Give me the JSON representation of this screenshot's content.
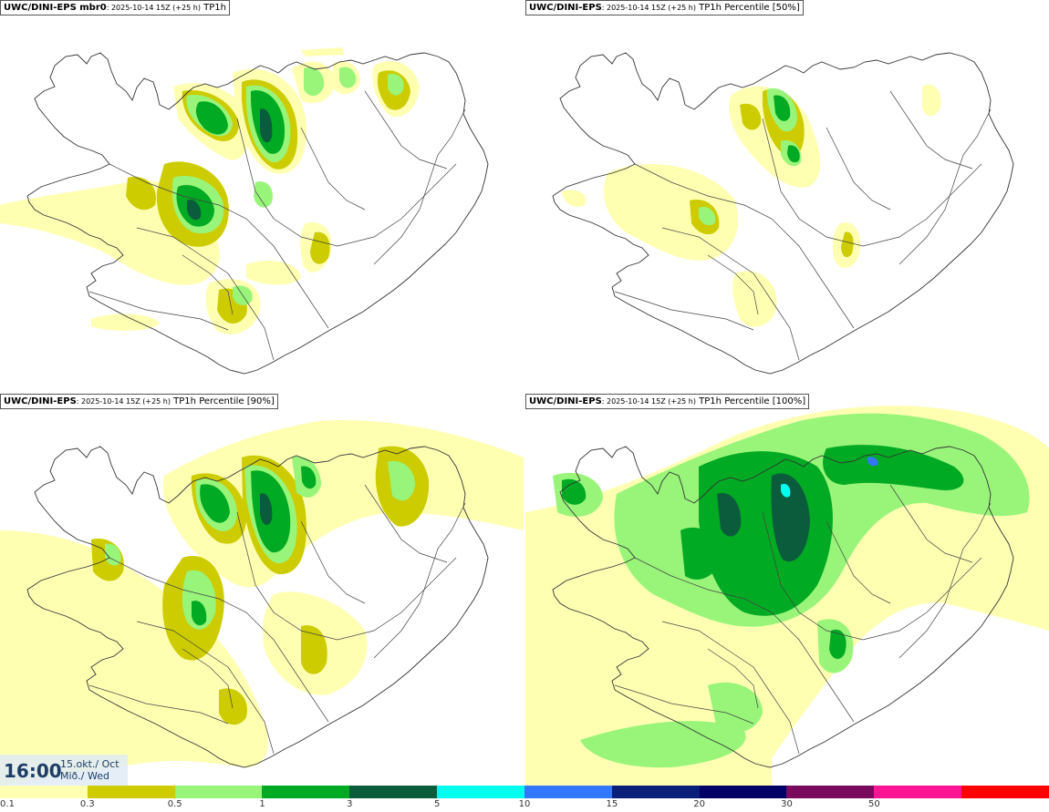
{
  "panels": [
    {
      "model": "UWC/DINI-EPS mbr0",
      "info": ": 2025-10-14 15Z (+25 h)",
      "field": "TP1h"
    },
    {
      "model": "UWC/DINI-EPS",
      "info": ": 2025-10-14 15Z (+25 h)",
      "field": "TP1h Percentile [50%]"
    },
    {
      "model": "UWC/DINI-EPS",
      "info": ": 2025-10-14 15Z (+25 h)",
      "field": "TP1h Percentile [90%]"
    },
    {
      "model": "UWC/DINI-EPS",
      "info": ": 2025-10-14 15Z (+25 h)",
      "field": "TP1h Percentile [100%]"
    }
  ],
  "time": {
    "clock": "16:00",
    "date_line1": "15.okt./ Oct",
    "date_line2": "Mið./ Wed"
  },
  "legend": {
    "colors": [
      "#ffffb2",
      "#cccc00",
      "#99f57a",
      "#00aa22",
      "#0a5c3c",
      "#00ffee",
      "#3377ff",
      "#0a1f7a",
      "#000066",
      "#7a0a5e",
      "#ff1493",
      "#ff0000"
    ],
    "labels": [
      "0.1",
      "0.3",
      "0.5",
      "1",
      "3",
      "5",
      "10",
      "15",
      "20",
      "30",
      "50"
    ]
  }
}
